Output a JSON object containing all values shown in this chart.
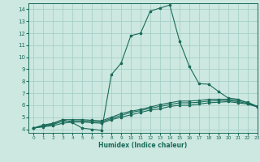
{
  "xlabel": "Humidex (Indice chaleur)",
  "ylabel": "",
  "bg_color": "#cce8e0",
  "grid_color": "#a0ccc4",
  "line_color": "#1a6b5a",
  "xlim": [
    -0.5,
    23
  ],
  "ylim": [
    3.7,
    14.5
  ],
  "xticks": [
    0,
    1,
    2,
    3,
    4,
    5,
    6,
    7,
    8,
    9,
    10,
    11,
    12,
    13,
    14,
    15,
    16,
    17,
    18,
    19,
    20,
    21,
    22,
    23
  ],
  "yticks": [
    4,
    5,
    6,
    7,
    8,
    9,
    10,
    11,
    12,
    13,
    14
  ],
  "lines": [
    {
      "x": [
        0,
        1,
        2,
        3,
        4,
        5,
        6,
        7,
        8,
        9,
        10,
        11,
        12,
        13,
        14,
        15,
        16,
        17,
        18,
        19,
        20,
        21,
        22,
        23
      ],
      "y": [
        4.1,
        4.35,
        4.5,
        4.8,
        4.55,
        4.1,
        4.0,
        3.9,
        8.55,
        9.5,
        11.8,
        12.0,
        13.85,
        14.1,
        14.35,
        11.35,
        9.25,
        7.8,
        7.75,
        7.15,
        6.6,
        6.5,
        6.2,
        5.9
      ]
    },
    {
      "x": [
        0,
        1,
        2,
        3,
        4,
        5,
        6,
        7,
        8,
        9,
        10,
        11,
        12,
        13,
        14,
        15,
        16,
        17,
        18,
        19,
        20,
        21,
        22,
        23
      ],
      "y": [
        4.1,
        4.3,
        4.45,
        4.8,
        4.8,
        4.8,
        4.75,
        4.7,
        5.0,
        5.3,
        5.5,
        5.65,
        5.85,
        6.05,
        6.2,
        6.35,
        6.35,
        6.4,
        6.5,
        6.5,
        6.5,
        6.4,
        6.25,
        5.9
      ]
    },
    {
      "x": [
        0,
        1,
        2,
        3,
        4,
        5,
        6,
        7,
        8,
        9,
        10,
        11,
        12,
        13,
        14,
        15,
        16,
        17,
        18,
        19,
        20,
        21,
        22,
        23
      ],
      "y": [
        4.1,
        4.2,
        4.3,
        4.5,
        4.6,
        4.6,
        4.55,
        4.5,
        4.8,
        5.0,
        5.2,
        5.4,
        5.6,
        5.7,
        5.9,
        6.0,
        6.0,
        6.1,
        6.2,
        6.25,
        6.3,
        6.2,
        6.1,
        5.85
      ]
    },
    {
      "x": [
        0,
        1,
        2,
        3,
        4,
        5,
        6,
        7,
        8,
        9,
        10,
        11,
        12,
        13,
        14,
        15,
        16,
        17,
        18,
        19,
        20,
        21,
        22,
        23
      ],
      "y": [
        4.1,
        4.25,
        4.4,
        4.65,
        4.7,
        4.7,
        4.65,
        4.6,
        4.9,
        5.15,
        5.4,
        5.55,
        5.75,
        5.9,
        6.05,
        6.2,
        6.2,
        6.25,
        6.35,
        6.38,
        6.4,
        6.3,
        6.15,
        5.88
      ]
    }
  ]
}
